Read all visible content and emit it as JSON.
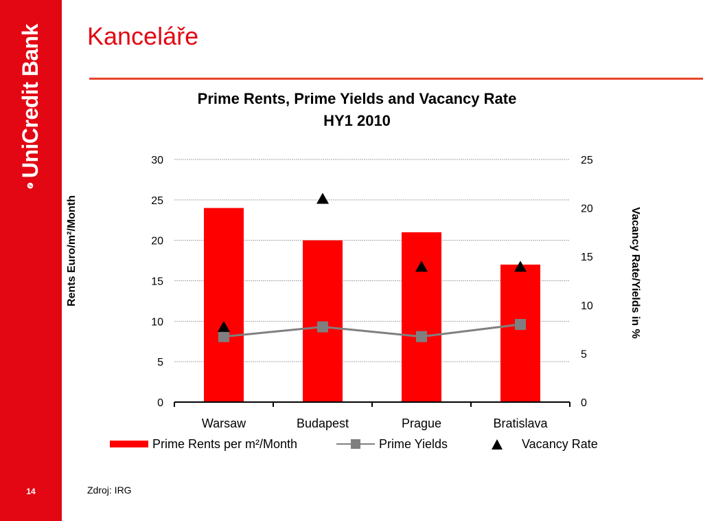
{
  "slide": {
    "heading": "Kanceláře",
    "brand_text": "UniCredit Bank",
    "page_number": "14",
    "source": "Zdroj: IRG"
  },
  "colors": {
    "brand_red": "#e30613",
    "bar": "#ff0000",
    "line": "#7f7f7f",
    "marker": "#000000"
  },
  "icons": {
    "logo": "unicredit-logo-icon"
  },
  "chart_data": {
    "type": "bar",
    "title_line1": "Prime Rents, Prime Yields and Vacancy Rate",
    "title_line2": "HY1 2010",
    "categories": [
      "Warsaw",
      "Budapest",
      "Prague",
      "Bratislava"
    ],
    "ylabel_left": "Rents Euro/m²/Month",
    "ylabel_right": "Vacancy Rate/Yields in %",
    "ylim_left": [
      0,
      30
    ],
    "ylim_right": [
      0,
      25
    ],
    "yticks_left": [
      0,
      5,
      10,
      15,
      20,
      25,
      30
    ],
    "yticks_right": [
      0,
      5,
      10,
      15,
      20,
      25
    ],
    "grid": true,
    "legend_position": "bottom",
    "series": [
      {
        "name": "Prime Rents per m²/Month",
        "kind": "bar",
        "axis": "left",
        "values": [
          24,
          20,
          21,
          17
        ]
      },
      {
        "name": "Prime Yields",
        "kind": "line",
        "axis": "right",
        "values": [
          6.75,
          7.75,
          6.75,
          8.0
        ]
      },
      {
        "name": "Vacancy Rate",
        "kind": "marker",
        "axis": "right",
        "values": [
          7.8,
          21.0,
          14.0,
          14.0
        ]
      }
    ]
  }
}
